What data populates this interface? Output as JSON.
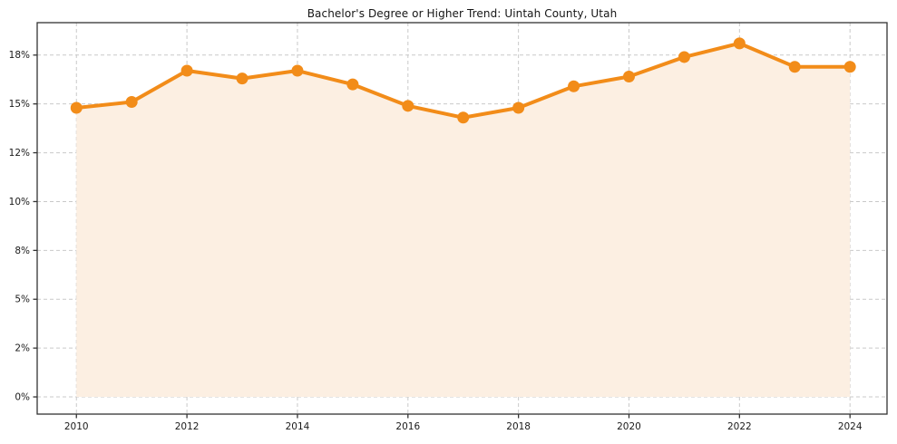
{
  "chart_data": {
    "type": "line",
    "title": "Bachelor's Degree or Higher Trend: Uintah County, Utah",
    "xlabel": "",
    "ylabel": "",
    "x": [
      2010,
      2011,
      2012,
      2013,
      2014,
      2015,
      2016,
      2017,
      2018,
      2019,
      2020,
      2021,
      2022,
      2023,
      2024
    ],
    "values": [
      14.8,
      15.1,
      16.7,
      16.3,
      16.7,
      16.0,
      14.9,
      14.3,
      14.8,
      15.9,
      16.4,
      17.4,
      18.1,
      16.9,
      16.9
    ],
    "unit": "%",
    "xlim": [
      2009.29,
      2024.67
    ],
    "ylim": [
      -0.88,
      19.16
    ],
    "x_ticks": {
      "values": [
        2010,
        2012,
        2014,
        2016,
        2018,
        2020,
        2022,
        2024
      ],
      "labels": [
        "2010",
        "2012",
        "2014",
        "2016",
        "2018",
        "2020",
        "2022",
        "2024"
      ]
    },
    "y_ticks": {
      "values": [
        0,
        2.5,
        5,
        7.5,
        10,
        12.5,
        15,
        17.5
      ],
      "labels": [
        "0%",
        "2%",
        "5%",
        "8%",
        "10%",
        "12%",
        "15%",
        "18%"
      ]
    },
    "grid": true,
    "legend": false,
    "area_fill": true,
    "area_baseline": 0,
    "colors": {
      "line": "#F28C19",
      "marker": "#F28C19",
      "fill": "#FCEFE2",
      "grid": "#C9C9C9",
      "spine": "#333333",
      "text": "#1A1A1A",
      "background": "#FFFFFF"
    }
  }
}
